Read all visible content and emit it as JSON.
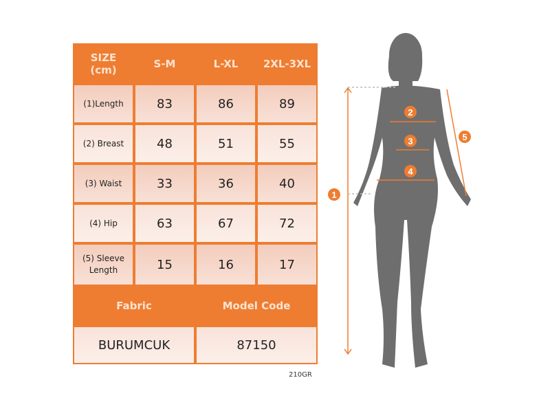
{
  "header": {
    "size_label": "SIZE\n(cm)",
    "columns": [
      "S-M",
      "L-XL",
      "2XL-3XL"
    ]
  },
  "rows": [
    {
      "label": "(1)Length",
      "values": [
        "83",
        "86",
        "89"
      ]
    },
    {
      "label": "(2) Breast",
      "values": [
        "48",
        "51",
        "55"
      ]
    },
    {
      "label": "(3) Waist",
      "values": [
        "33",
        "36",
        "40"
      ]
    },
    {
      "label": "(4) Hip",
      "values": [
        "63",
        "67",
        "72"
      ]
    },
    {
      "label": "(5) Sleeve Length",
      "values": [
        "15",
        "16",
        "17"
      ]
    }
  ],
  "footer": {
    "fabric_label": "Fabric",
    "model_code_label": "Model Code",
    "fabric": "BURUMCUK",
    "model_code": "87150"
  },
  "code": "210GR",
  "markers": [
    "1",
    "2",
    "3",
    "4",
    "5"
  ],
  "colors": {
    "accent": "#ee7d31",
    "silhouette": "#6e6e6e"
  }
}
